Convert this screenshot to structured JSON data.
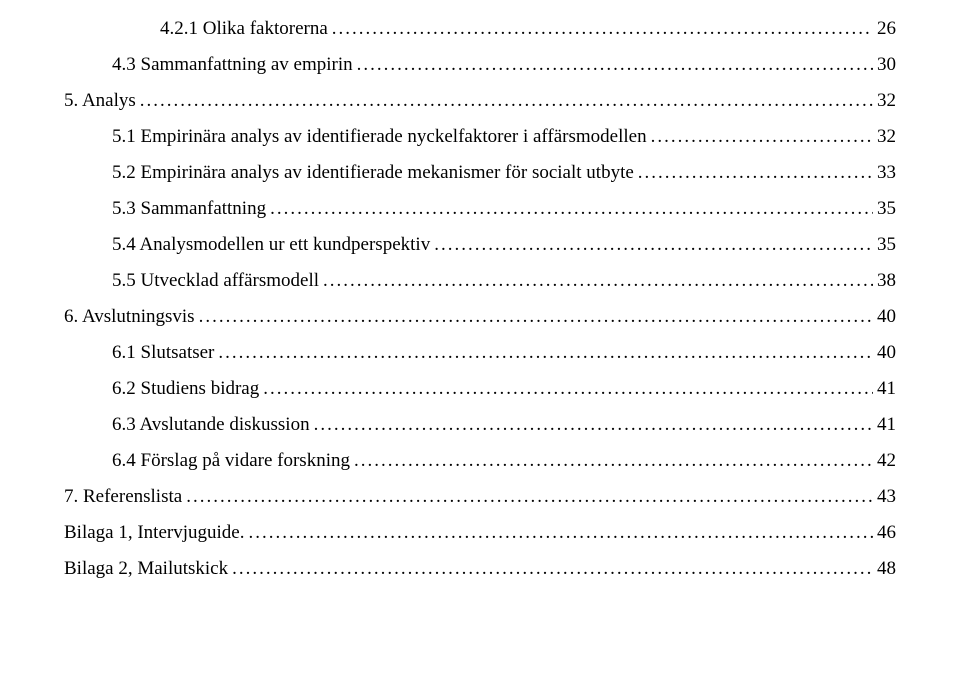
{
  "toc": [
    {
      "label": "4.2.1 Olika faktorerna",
      "page": "26",
      "indent": 2
    },
    {
      "label": "4.3 Sammanfattning av empirin",
      "page": "30",
      "indent": 1
    },
    {
      "label": "5. Analys",
      "page": "32",
      "indent": 0
    },
    {
      "label": "5.1 Empirinära analys av identifierade nyckelfaktorer i affärsmodellen",
      "page": "32",
      "indent": 1
    },
    {
      "label": "5.2 Empirinära analys av identifierade mekanismer för socialt utbyte",
      "page": "33",
      "indent": 1
    },
    {
      "label": "5.3 Sammanfattning",
      "page": "35",
      "indent": 1
    },
    {
      "label": "5.4 Analysmodellen ur ett kundperspektiv",
      "page": "35",
      "indent": 1
    },
    {
      "label": "5.5 Utvecklad affärsmodell",
      "page": "38",
      "indent": 1
    },
    {
      "label": "6. Avslutningsvis",
      "page": "40",
      "indent": 0
    },
    {
      "label": "6.1 Slutsatser",
      "page": "40",
      "indent": 1
    },
    {
      "label": "6.2 Studiens bidrag",
      "page": "41",
      "indent": 1
    },
    {
      "label": "6.3 Avslutande diskussion",
      "page": "41",
      "indent": 1
    },
    {
      "label": "6.4 Förslag på vidare forskning",
      "page": "42",
      "indent": 1
    },
    {
      "label": "7. Referenslista",
      "page": "43",
      "indent": 0
    },
    {
      "label": "Bilaga 1, Intervjuguide.",
      "page": "46",
      "indent": 0
    },
    {
      "label": "Bilaga 2, Mailutskick",
      "page": "48",
      "indent": 0
    }
  ]
}
